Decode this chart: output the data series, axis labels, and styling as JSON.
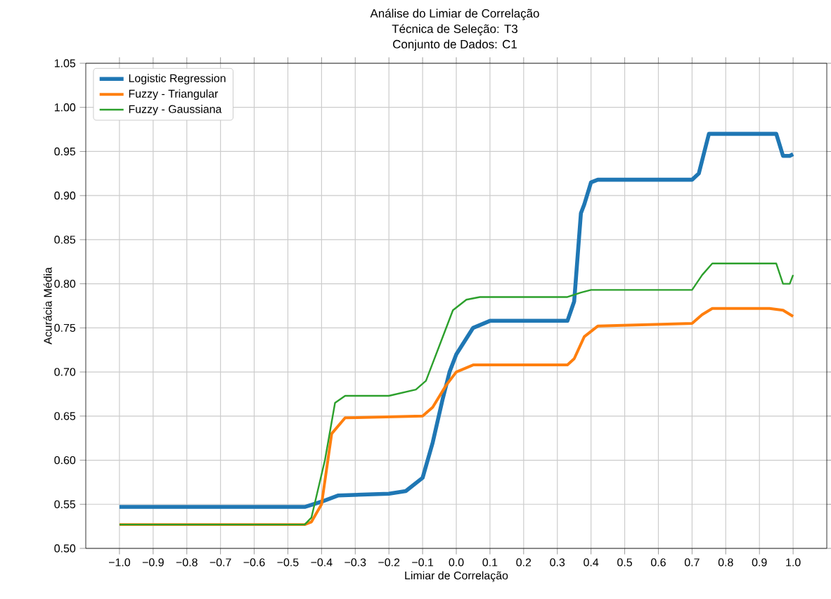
{
  "chart_data": {
    "type": "line",
    "title": "Análise do Limiar de Correlação",
    "subtitle": "Técnica de Seleção: T3",
    "annotations": [
      "Conjunto de Dados: C1"
    ],
    "xlabel": "Limiar de Correlação",
    "ylabel": "Acurácia Média",
    "xlim": [
      -1.1,
      1.1
    ],
    "ylim": [
      0.5,
      1.05
    ],
    "xticks": [
      {
        "value": -1.0,
        "label": "−1.0"
      },
      {
        "value": -0.9,
        "label": "−0.9"
      },
      {
        "value": -0.8,
        "label": "−0.8"
      },
      {
        "value": -0.7,
        "label": "−0.7"
      },
      {
        "value": -0.6,
        "label": "−0.6"
      },
      {
        "value": -0.5,
        "label": "−0.5"
      },
      {
        "value": -0.4,
        "label": "−0.4"
      },
      {
        "value": -0.3,
        "label": "−0.3"
      },
      {
        "value": -0.2,
        "label": "−0.2"
      },
      {
        "value": -0.1,
        "label": "−0.1"
      },
      {
        "value": 0.0,
        "label": "0.0"
      },
      {
        "value": 0.1,
        "label": "0.1"
      },
      {
        "value": 0.2,
        "label": "0.2"
      },
      {
        "value": 0.3,
        "label": "0.3"
      },
      {
        "value": 0.4,
        "label": "0.4"
      },
      {
        "value": 0.5,
        "label": "0.5"
      },
      {
        "value": 0.6,
        "label": "0.6"
      },
      {
        "value": 0.7,
        "label": "0.7"
      },
      {
        "value": 0.8,
        "label": "0.8"
      },
      {
        "value": 0.9,
        "label": "0.9"
      },
      {
        "value": 1.0,
        "label": "1.0"
      }
    ],
    "yticks": [
      {
        "value": 0.5,
        "label": "0.50"
      },
      {
        "value": 0.55,
        "label": "0.55"
      },
      {
        "value": 0.6,
        "label": "0.60"
      },
      {
        "value": 0.65,
        "label": "0.65"
      },
      {
        "value": 0.7,
        "label": "0.70"
      },
      {
        "value": 0.75,
        "label": "0.75"
      },
      {
        "value": 0.8,
        "label": "0.80"
      },
      {
        "value": 0.85,
        "label": "0.85"
      },
      {
        "value": 0.9,
        "label": "0.90"
      },
      {
        "value": 0.95,
        "label": "0.95"
      },
      {
        "value": 1.0,
        "label": "1.00"
      },
      {
        "value": 1.05,
        "label": "1.05"
      }
    ],
    "grid": true,
    "legend": "top left",
    "line_style": "solid",
    "series": [
      {
        "name": "Logistic Regression",
        "color": "#1f77b4",
        "x": [
          -1.0,
          -0.45,
          -0.4,
          -0.35,
          -0.2,
          -0.15,
          -0.1,
          -0.07,
          -0.04,
          -0.02,
          0.0,
          0.05,
          0.1,
          0.33,
          0.35,
          0.37,
          0.38,
          0.4,
          0.42,
          0.7,
          0.72,
          0.75,
          0.95,
          0.97,
          0.99,
          1.0
        ],
        "values": [
          0.547,
          0.547,
          0.553,
          0.56,
          0.562,
          0.565,
          0.58,
          0.62,
          0.67,
          0.7,
          0.72,
          0.75,
          0.758,
          0.758,
          0.78,
          0.88,
          0.89,
          0.915,
          0.918,
          0.918,
          0.925,
          0.97,
          0.97,
          0.945,
          0.945,
          0.947
        ]
      },
      {
        "name": "Fuzzy - Triangular",
        "color": "#ff7f0e",
        "x": [
          -1.0,
          -0.45,
          -0.43,
          -0.4,
          -0.37,
          -0.33,
          -0.1,
          -0.07,
          -0.03,
          0.0,
          0.05,
          0.33,
          0.35,
          0.38,
          0.42,
          0.7,
          0.73,
          0.76,
          0.93,
          0.97,
          1.0
        ],
        "values": [
          0.527,
          0.527,
          0.53,
          0.55,
          0.63,
          0.648,
          0.65,
          0.66,
          0.685,
          0.7,
          0.708,
          0.708,
          0.715,
          0.74,
          0.752,
          0.755,
          0.765,
          0.772,
          0.772,
          0.77,
          0.763
        ]
      },
      {
        "name": "Fuzzy - Gaussiana",
        "color": "#2ca02c",
        "x": [
          -1.0,
          -0.45,
          -0.43,
          -0.39,
          -0.36,
          -0.33,
          -0.2,
          -0.12,
          -0.09,
          -0.05,
          -0.01,
          0.03,
          0.07,
          0.33,
          0.37,
          0.4,
          0.7,
          0.73,
          0.76,
          0.95,
          0.97,
          0.99,
          1.0
        ],
        "values": [
          0.527,
          0.527,
          0.535,
          0.6,
          0.665,
          0.673,
          0.673,
          0.68,
          0.69,
          0.73,
          0.77,
          0.782,
          0.785,
          0.785,
          0.79,
          0.793,
          0.793,
          0.81,
          0.823,
          0.823,
          0.8,
          0.8,
          0.81
        ]
      }
    ]
  }
}
